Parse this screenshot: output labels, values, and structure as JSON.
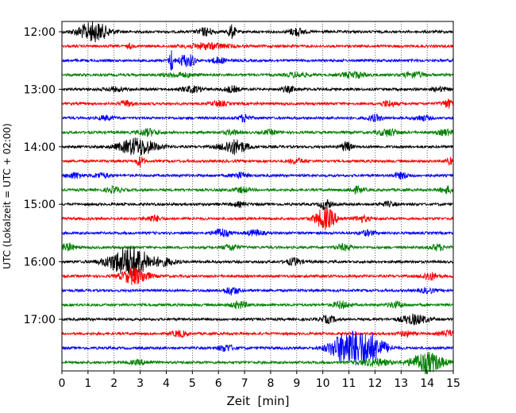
{
  "chart_data": {
    "type": "line",
    "title": "",
    "xlabel": "Zeit  [min]",
    "ylabel": "UTC (Lokalzeit = UTC + 02:00)",
    "xlim": [
      0,
      15
    ],
    "xticks": [
      0,
      1,
      2,
      3,
      4,
      5,
      6,
      7,
      8,
      9,
      10,
      11,
      12,
      13,
      14,
      15
    ],
    "ytick_labels": [
      "12:00",
      "13:00",
      "14:00",
      "15:00",
      "16:00",
      "17:00"
    ],
    "ytick_trace_index": [
      0,
      4,
      8,
      12,
      16,
      20
    ],
    "grid": "vertical dotted at each minute",
    "trace_interval_min": 15,
    "start_time_utc": "11:59",
    "colors_cycle": [
      "#000000",
      "#ff0000",
      "#0000ff",
      "#008000"
    ],
    "traces": [
      {
        "bursts": [
          [
            1.2,
            1.0,
            0.6
          ],
          [
            5.5,
            0.4,
            0.3
          ],
          [
            6.5,
            0.7,
            0.15
          ],
          [
            9.0,
            0.4,
            0.3
          ]
        ]
      },
      {
        "bursts": [
          [
            2.6,
            0.25,
            0.1
          ],
          [
            5.6,
            0.3,
            0.8
          ]
        ]
      },
      {
        "bursts": [
          [
            4.2,
            1.2,
            0.08
          ],
          [
            4.7,
            0.6,
            0.25
          ],
          [
            5.0,
            0.5,
            0.1
          ],
          [
            6.0,
            0.3,
            0.3
          ]
        ]
      },
      {
        "bursts": [
          [
            4.5,
            0.2,
            0.6
          ],
          [
            9.0,
            0.25,
            0.4
          ],
          [
            11.2,
            0.3,
            0.5
          ],
          [
            13.5,
            0.3,
            0.4
          ]
        ]
      },
      {
        "bursts": [
          [
            2.0,
            0.2,
            0.4
          ],
          [
            5.0,
            0.3,
            0.4
          ],
          [
            6.5,
            0.3,
            0.3
          ],
          [
            8.7,
            0.25,
            0.3
          ],
          [
            14.5,
            0.2,
            0.3
          ]
        ]
      },
      {
        "bursts": [
          [
            2.5,
            0.3,
            0.25
          ],
          [
            6.0,
            0.25,
            0.3
          ],
          [
            12.5,
            0.3,
            0.3
          ],
          [
            14.8,
            0.4,
            0.25
          ]
        ]
      },
      {
        "bursts": [
          [
            1.7,
            0.2,
            0.3
          ],
          [
            7.0,
            0.4,
            0.2
          ],
          [
            12.0,
            0.3,
            0.3
          ],
          [
            13.8,
            0.25,
            0.3
          ]
        ]
      },
      {
        "bursts": [
          [
            3.3,
            0.35,
            0.4
          ],
          [
            6.5,
            0.2,
            0.3
          ],
          [
            8.0,
            0.2,
            0.3
          ],
          [
            12.5,
            0.35,
            0.4
          ],
          [
            14.7,
            0.3,
            0.3
          ]
        ]
      },
      {
        "bursts": [
          [
            2.9,
            0.9,
            0.7
          ],
          [
            6.6,
            0.75,
            0.5
          ],
          [
            10.9,
            0.5,
            0.2
          ]
        ]
      },
      {
        "bursts": [
          [
            3.0,
            0.55,
            0.15
          ],
          [
            9.0,
            0.25,
            0.3
          ],
          [
            14.9,
            0.3,
            0.2
          ]
        ]
      },
      {
        "bursts": [
          [
            0.5,
            0.3,
            0.3
          ],
          [
            1.5,
            0.25,
            0.3
          ],
          [
            6.8,
            0.3,
            0.3
          ],
          [
            13.0,
            0.3,
            0.3
          ]
        ]
      },
      {
        "bursts": [
          [
            2.0,
            0.3,
            0.3
          ],
          [
            6.9,
            0.25,
            0.3
          ],
          [
            11.3,
            0.3,
            0.3
          ],
          [
            14.8,
            0.35,
            0.3
          ]
        ]
      },
      {
        "bursts": [
          [
            10.1,
            0.55,
            0.2
          ],
          [
            6.8,
            0.2,
            0.3
          ],
          [
            12.5,
            0.2,
            0.3
          ]
        ]
      },
      {
        "bursts": [
          [
            3.5,
            0.3,
            0.3
          ],
          [
            10.1,
            1.1,
            0.4
          ],
          [
            11.5,
            0.3,
            0.3
          ]
        ]
      },
      {
        "bursts": [
          [
            6.1,
            0.45,
            0.3
          ],
          [
            7.4,
            0.3,
            0.3
          ],
          [
            11.7,
            0.25,
            0.3
          ]
        ]
      },
      {
        "bursts": [
          [
            0.2,
            0.35,
            0.3
          ],
          [
            6.5,
            0.3,
            0.3
          ],
          [
            10.8,
            0.3,
            0.3
          ],
          [
            14.4,
            0.3,
            0.3
          ]
        ]
      },
      {
        "bursts": [
          [
            2.6,
            1.6,
            0.8
          ],
          [
            4.0,
            0.3,
            0.4
          ],
          [
            8.9,
            0.35,
            0.3
          ]
        ]
      },
      {
        "bursts": [
          [
            2.8,
            0.9,
            0.5
          ],
          [
            14.1,
            0.4,
            0.3
          ]
        ]
      },
      {
        "bursts": [
          [
            6.5,
            0.4,
            0.3
          ],
          [
            14.0,
            0.25,
            0.3
          ]
        ]
      },
      {
        "bursts": [
          [
            6.8,
            0.35,
            0.3
          ],
          [
            10.7,
            0.35,
            0.3
          ],
          [
            12.8,
            0.3,
            0.3
          ]
        ]
      },
      {
        "bursts": [
          [
            10.2,
            0.35,
            0.3
          ],
          [
            13.5,
            0.5,
            0.5
          ]
        ]
      },
      {
        "bursts": [
          [
            4.5,
            0.3,
            0.3
          ],
          [
            13.2,
            0.25,
            0.3
          ],
          [
            14.8,
            0.3,
            0.3
          ]
        ]
      },
      {
        "bursts": [
          [
            6.3,
            0.35,
            0.3
          ],
          [
            10.9,
            1.7,
            0.6
          ],
          [
            11.8,
            1.4,
            0.6
          ]
        ]
      },
      {
        "bursts": [
          [
            3.0,
            0.2,
            0.4
          ],
          [
            12.0,
            0.35,
            0.6
          ],
          [
            14.0,
            1.1,
            0.6
          ]
        ]
      }
    ]
  }
}
